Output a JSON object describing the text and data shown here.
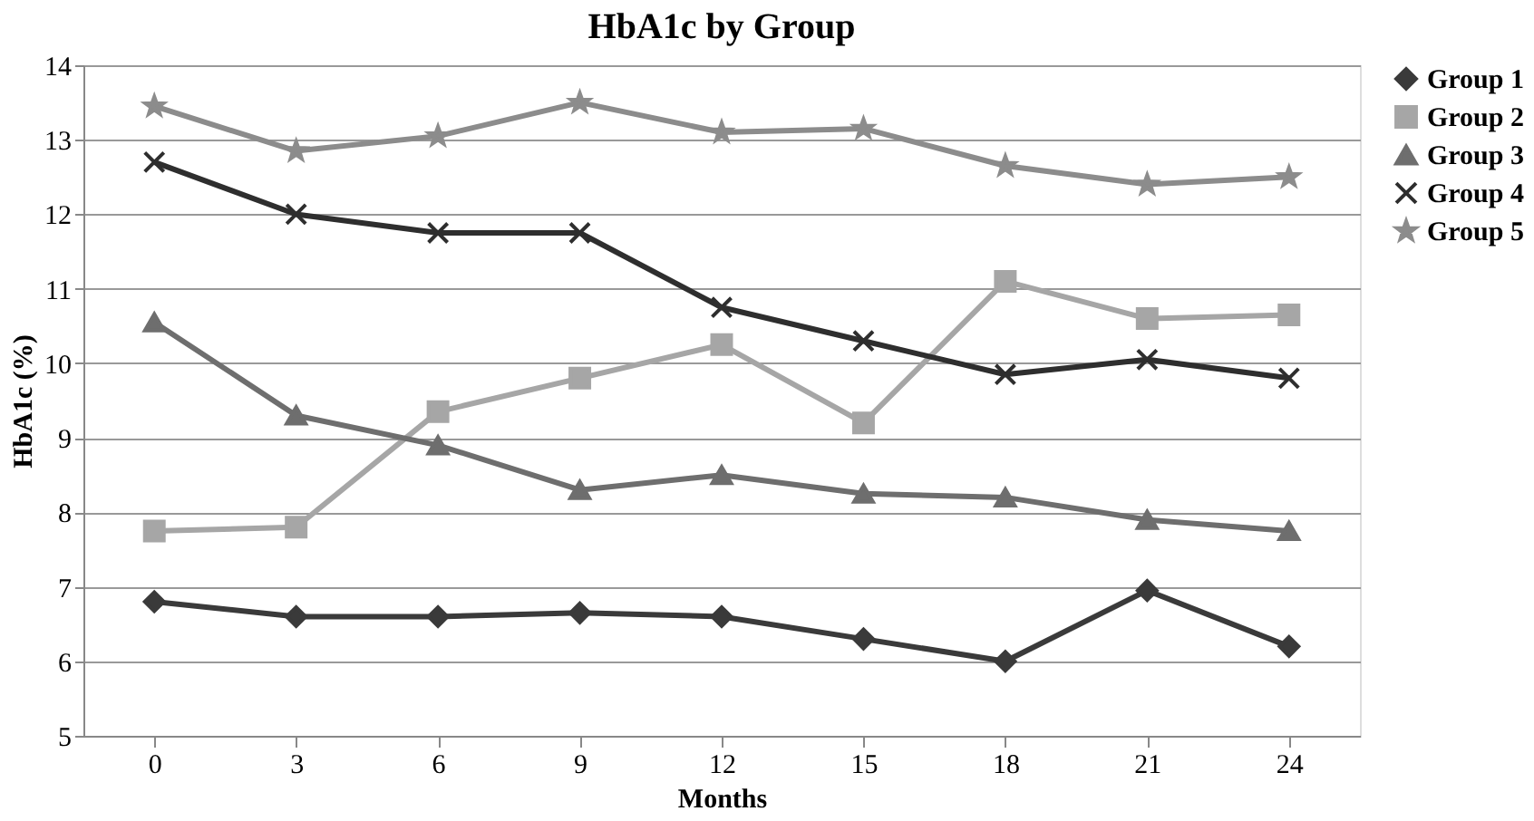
{
  "chart_data": {
    "type": "line",
    "title": "HbA1c by Group",
    "xlabel": "Months",
    "ylabel": "HbA1c (%)",
    "categories": [
      "0",
      "3",
      "6",
      "9",
      "12",
      "15",
      "18",
      "21",
      "24"
    ],
    "series": [
      {
        "name": "Group 1",
        "color": "#3a3a3a",
        "marker": "diamond",
        "values": [
          6.8,
          6.6,
          6.6,
          6.65,
          6.6,
          6.3,
          6.0,
          6.95,
          6.2
        ]
      },
      {
        "name": "Group 2",
        "color": "#a6a6a6",
        "marker": "square",
        "values": [
          7.75,
          7.8,
          9.35,
          9.8,
          10.25,
          9.2,
          11.1,
          10.6,
          10.65
        ]
      },
      {
        "name": "Group 3",
        "color": "#6e6e6e",
        "marker": "triangle",
        "values": [
          10.55,
          9.3,
          8.9,
          8.3,
          8.5,
          8.25,
          8.2,
          7.9,
          7.75
        ]
      },
      {
        "name": "Group 4",
        "color": "#2e2e2e",
        "marker": "cross",
        "values": [
          12.7,
          12.0,
          11.75,
          11.75,
          10.75,
          10.3,
          9.85,
          10.05,
          9.8
        ]
      },
      {
        "name": "Group 5",
        "color": "#8c8c8c",
        "marker": "star",
        "values": [
          13.45,
          12.85,
          13.05,
          13.5,
          13.1,
          13.15,
          12.65,
          12.4,
          12.5
        ]
      }
    ],
    "ylim": [
      5,
      14
    ],
    "yticks": [
      5,
      6,
      7,
      8,
      9,
      10,
      11,
      12,
      13,
      14
    ],
    "grid": "y",
    "legend": "right",
    "line_style": "solid"
  }
}
